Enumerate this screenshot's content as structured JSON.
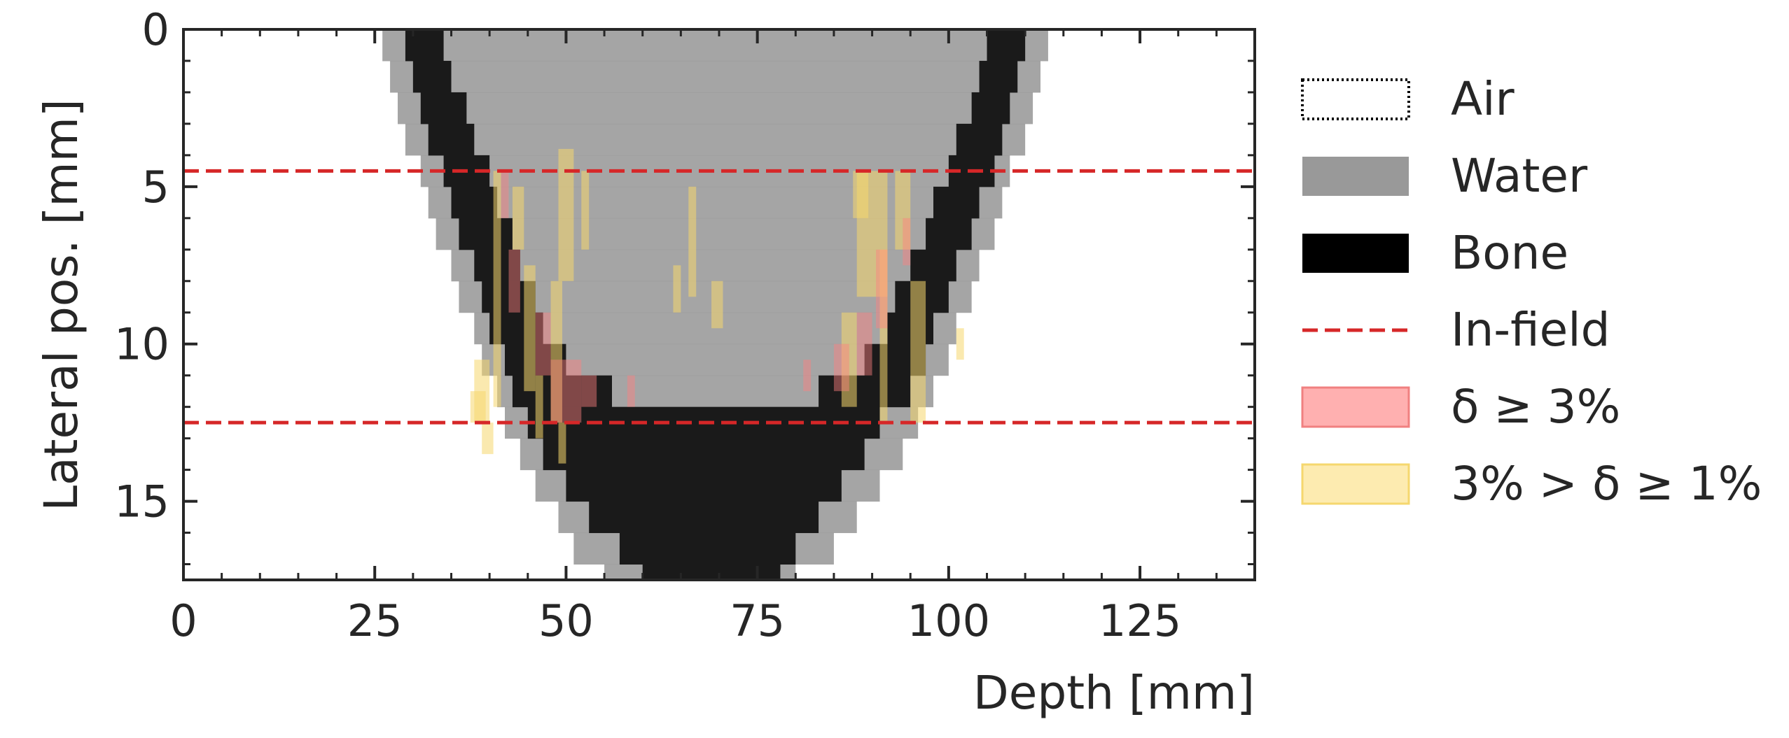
{
  "chart_data": {
    "type": "heatmap",
    "title": "",
    "xlabel": "Depth [mm]",
    "ylabel": "Lateral pos. [mm]",
    "xlim": [
      0,
      140
    ],
    "ylim": [
      17.5,
      0
    ],
    "y_inverted": true,
    "xticks": [
      0,
      25,
      50,
      75,
      100,
      125
    ],
    "yticks": [
      0,
      5,
      10,
      15
    ],
    "grid": false,
    "legend_position": "outside-right",
    "colors": {
      "water": "#999999",
      "bone": "#000000",
      "infield": "#d62728",
      "delta_high": "#ff8080",
      "delta_mid": "#f5d76e"
    },
    "material_map": {
      "description_rows": "per lateral row: [y_start, y_end, bone_left_start, bone_left_end, bone_right_start, bone_right_end, water_left_outer, water_right_outer]",
      "rows": [
        [
          0.0,
          1.0,
          29,
          34,
          105,
          110,
          26,
          113
        ],
        [
          1.0,
          2.0,
          30,
          35,
          104,
          109,
          27,
          112
        ],
        [
          2.0,
          3.0,
          31,
          37,
          103,
          108,
          28,
          111
        ],
        [
          3.0,
          4.0,
          32,
          38,
          101,
          107,
          29,
          110
        ],
        [
          4.0,
          5.0,
          34,
          40,
          100,
          106,
          31,
          108
        ],
        [
          5.0,
          6.0,
          35,
          41,
          98,
          104,
          32,
          107
        ],
        [
          6.0,
          7.0,
          36,
          43,
          97,
          103,
          33,
          106
        ],
        [
          7.0,
          8.0,
          38,
          44,
          95,
          101,
          35,
          104
        ],
        [
          8.0,
          9.0,
          39,
          46,
          93,
          100,
          36,
          103
        ],
        [
          9.0,
          10.0,
          40,
          47,
          92,
          98,
          38,
          101
        ],
        [
          10.0,
          11.0,
          42,
          50,
          89,
          97,
          39,
          100
        ],
        [
          11.0,
          12.0,
          43,
          56,
          83,
          95,
          41,
          98
        ],
        [
          12.0,
          13.0,
          45,
          91,
          45,
          91,
          42,
          96
        ],
        [
          13.0,
          14.0,
          47,
          89,
          47,
          89,
          44,
          94
        ],
        [
          14.0,
          15.0,
          50,
          86,
          50,
          86,
          46,
          91
        ],
        [
          15.0,
          16.0,
          53,
          83,
          53,
          83,
          49,
          88
        ],
        [
          16.0,
          17.0,
          57,
          80,
          57,
          80,
          51,
          85
        ],
        [
          17.0,
          17.5,
          60,
          78,
          60,
          78,
          55,
          80
        ]
      ]
    },
    "delta_high_regions": [
      [
        41.5,
        42.5,
        4.5,
        6.0
      ],
      [
        42.5,
        44.0,
        7.0,
        9.0
      ],
      [
        46.0,
        48.0,
        9.0,
        11.0
      ],
      [
        48.0,
        52.0,
        10.5,
        12.5
      ],
      [
        52.0,
        54.0,
        11.0,
        12.0
      ],
      [
        58.0,
        59.0,
        11.0,
        12.0
      ],
      [
        81.0,
        82.0,
        10.5,
        11.5
      ],
      [
        85.0,
        87.0,
        10.0,
        11.5
      ],
      [
        88.0,
        90.0,
        9.0,
        11.0
      ],
      [
        90.5,
        92.0,
        7.0,
        9.5
      ],
      [
        94.0,
        95.0,
        6.0,
        7.5
      ]
    ],
    "delta_mid_regions": [
      [
        40.5,
        41.5,
        4.5,
        12.0
      ],
      [
        43.0,
        44.5,
        5.0,
        7.0
      ],
      [
        44.5,
        46.0,
        7.5,
        11.5
      ],
      [
        46.0,
        47.0,
        11.0,
        13.0
      ],
      [
        49.0,
        51.0,
        3.8,
        8.0
      ],
      [
        48.0,
        49.5,
        8.0,
        12.5
      ],
      [
        52.0,
        53.0,
        4.5,
        7.0
      ],
      [
        49.0,
        50.0,
        12.5,
        13.8
      ],
      [
        38.0,
        40.0,
        10.5,
        12.5
      ],
      [
        37.5,
        39.5,
        11.5,
        12.5
      ],
      [
        39.0,
        40.5,
        12.5,
        13.5
      ],
      [
        66.0,
        67.0,
        5.0,
        8.5
      ],
      [
        64.0,
        65.0,
        7.5,
        9.0
      ],
      [
        69.0,
        70.5,
        8.0,
        9.5
      ],
      [
        87.5,
        89.5,
        4.5,
        6.0
      ],
      [
        88.0,
        92.0,
        4.5,
        8.5
      ],
      [
        93.0,
        95.0,
        4.5,
        7.0
      ],
      [
        91.0,
        92.0,
        7.0,
        12.5
      ],
      [
        86.0,
        88.0,
        9.0,
        12.0
      ],
      [
        95.0,
        97.0,
        8.0,
        12.5
      ],
      [
        101.0,
        102.0,
        9.5,
        10.5
      ]
    ],
    "infield_lines_y": [
      4.5,
      12.5
    ],
    "legend": [
      {
        "label": "Air",
        "style": "dotted-box"
      },
      {
        "label": "Water",
        "style": "water"
      },
      {
        "label": "Bone",
        "style": "bone"
      },
      {
        "label": "In-field",
        "style": "dashed-line"
      },
      {
        "label": "δ ≥ 3%",
        "style": "delta_high"
      },
      {
        "label": "3% > δ ≥ 1%",
        "style": "delta_mid"
      }
    ]
  }
}
